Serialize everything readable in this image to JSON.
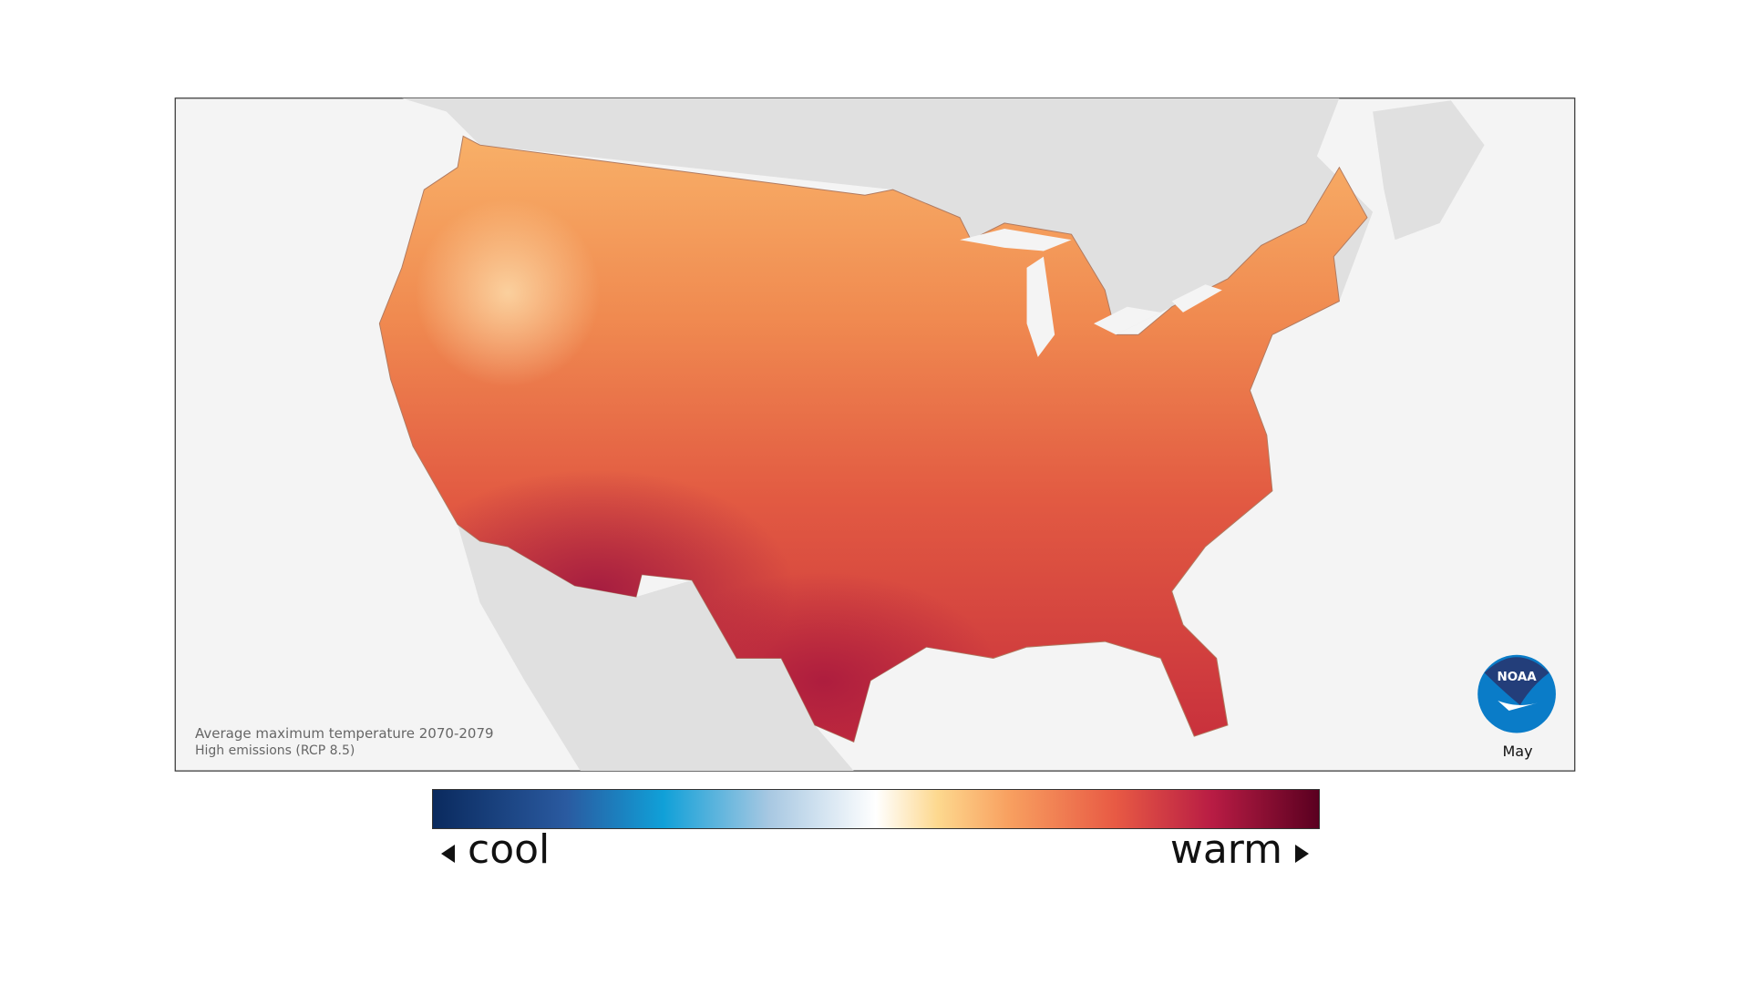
{
  "caption": {
    "title": "Average maximum temperature 2070-2079",
    "scenario": "High emissions (RCP 8.5)"
  },
  "month": "May",
  "logo": {
    "text": "NOAA",
    "colors": {
      "dark": "#233e7a",
      "light": "#0a7cc8"
    }
  },
  "legend": {
    "cool_label": "cool",
    "warm_label": "warm",
    "colors": [
      "#0a2a5e",
      "#2a5aa0",
      "#10a0d8",
      "#a8c8e2",
      "#ffffff",
      "#fdd88e",
      "#f8a060",
      "#e85a44",
      "#b81c44",
      "#5a0020"
    ]
  },
  "colors": {
    "ocean": "#f4f4f4",
    "other_land": "#e0e0e0",
    "frame": "#333333"
  }
}
